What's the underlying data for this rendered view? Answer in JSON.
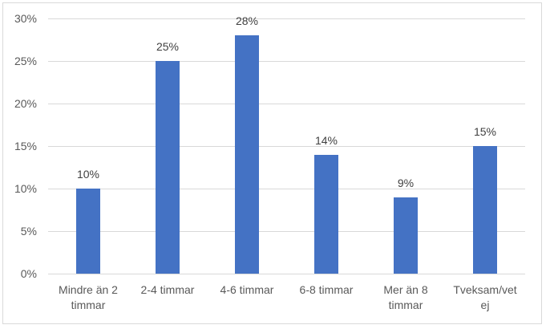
{
  "chart_data": {
    "type": "bar",
    "title": "",
    "xlabel": "",
    "ylabel": "",
    "categories": [
      "Mindre än 2 timmar",
      "2-4 timmar",
      "4-6 timmar",
      "6-8 timmar",
      "Mer än 8 timmar",
      "Tveksam/vet ej"
    ],
    "category_lines": [
      [
        "Mindre än 2",
        "timmar"
      ],
      [
        "2-4 timmar"
      ],
      [
        "4-6 timmar"
      ],
      [
        "6-8 timmar"
      ],
      [
        "Mer än 8",
        "timmar"
      ],
      [
        "Tveksam/vet",
        "ej"
      ]
    ],
    "values": [
      10,
      25,
      28,
      14,
      9,
      15
    ],
    "data_labels": [
      "10%",
      "25%",
      "28%",
      "14%",
      "9%",
      "15%"
    ],
    "ylim": [
      0,
      30
    ],
    "yticks": [
      "0%",
      "5%",
      "10%",
      "15%",
      "20%",
      "25%",
      "30%"
    ],
    "grid": true,
    "legend": null,
    "bar_color": "#4472c4"
  }
}
